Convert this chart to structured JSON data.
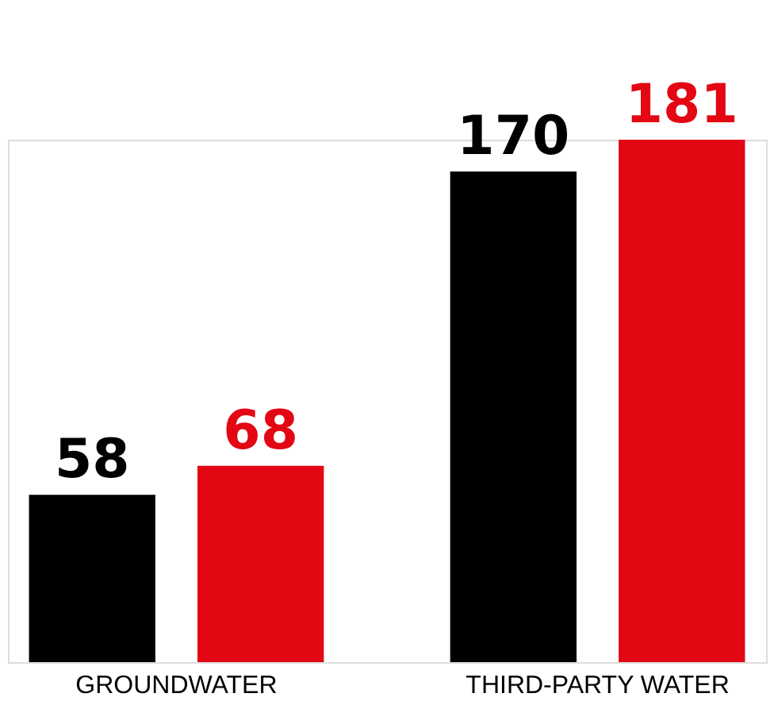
{
  "chart_data": {
    "type": "bar",
    "categories": [
      "GROUNDWATER",
      "THIRD-PARTY WATER"
    ],
    "series": [
      {
        "color": "#000000",
        "values": [
          58,
          170
        ]
      },
      {
        "color": "#e30613",
        "values": [
          68,
          181
        ]
      }
    ],
    "data_labels": true
  }
}
